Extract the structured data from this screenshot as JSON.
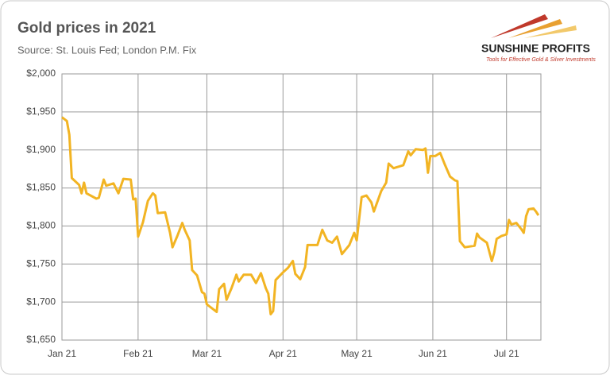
{
  "chart_data": {
    "type": "line",
    "title": "Gold prices in 2021",
    "subtitle": "Source: St. Louis Fed; London P.M. Fix",
    "brand": "SUNSHINE PROFITS",
    "tagline": "Tools for Effective Gold & Silver Investments",
    "color": "#f2b423",
    "grid": true,
    "x": [
      0,
      2,
      3,
      4,
      7,
      8,
      9,
      10,
      14,
      15,
      17,
      18,
      21,
      23,
      25,
      28,
      29,
      30,
      31,
      33,
      35,
      37,
      38,
      39,
      42,
      44,
      45,
      47,
      49,
      50,
      52,
      53,
      55,
      57,
      58,
      59,
      63,
      64,
      66,
      67,
      69,
      71,
      72,
      74,
      77,
      79,
      81,
      83,
      84,
      85,
      86,
      87,
      90,
      92,
      94,
      95,
      97,
      99,
      100,
      104,
      106,
      108,
      110,
      112,
      114,
      117,
      119,
      120,
      122,
      124,
      126,
      127,
      130,
      132,
      133,
      135,
      139,
      141,
      142,
      144,
      147,
      148,
      149,
      150,
      152,
      154,
      156,
      158,
      160,
      161,
      162,
      164,
      168,
      169,
      170,
      173,
      175,
      176,
      177,
      179,
      181,
      182,
      183,
      185,
      187,
      188,
      189,
      190,
      192,
      193,
      194
    ],
    "values": [
      1943,
      1938,
      1920,
      1863,
      1854,
      1843,
      1857,
      1843,
      1836,
      1837,
      1861,
      1853,
      1856,
      1843,
      1862,
      1861,
      1835,
      1836,
      1786,
      1805,
      1833,
      1843,
      1840,
      1817,
      1818,
      1791,
      1772,
      1787,
      1804,
      1795,
      1781,
      1742,
      1735,
      1713,
      1711,
      1697,
      1687,
      1717,
      1724,
      1703,
      1718,
      1736,
      1727,
      1736,
      1736,
      1725,
      1738,
      1718,
      1711,
      1684,
      1688,
      1729,
      1739,
      1745,
      1754,
      1737,
      1730,
      1746,
      1775,
      1775,
      1795,
      1781,
      1778,
      1786,
      1763,
      1775,
      1791,
      1781,
      1838,
      1840,
      1831,
      1819,
      1846,
      1857,
      1882,
      1876,
      1880,
      1898,
      1893,
      1901,
      1900,
      1902,
      1870,
      1892,
      1892,
      1896,
      1880,
      1865,
      1860,
      1859,
      1780,
      1772,
      1774,
      1790,
      1785,
      1778,
      1754,
      1765,
      1783,
      1787,
      1789,
      1808,
      1802,
      1804,
      1796,
      1791,
      1813,
      1822,
      1823,
      1819,
      1814
    ],
    "xlim": [
      0,
      195
    ],
    "xticks": [
      {
        "value": 0,
        "label": "Jan 21"
      },
      {
        "value": 31,
        "label": "Feb 21"
      },
      {
        "value": 59,
        "label": "Mar 21"
      },
      {
        "value": 90,
        "label": "Apr 21"
      },
      {
        "value": 120,
        "label": "May 21"
      },
      {
        "value": 151,
        "label": "Jun 21"
      },
      {
        "value": 181,
        "label": "Jul 21"
      }
    ],
    "ylim": [
      1650,
      2000
    ],
    "yticks": [
      {
        "value": 1650,
        "label": "$1,650"
      },
      {
        "value": 1700,
        "label": "$1,700"
      },
      {
        "value": 1750,
        "label": "$1,750"
      },
      {
        "value": 1800,
        "label": "$1,800"
      },
      {
        "value": 1850,
        "label": "$1,850"
      },
      {
        "value": 1900,
        "label": "$1,900"
      },
      {
        "value": 1950,
        "label": "$1,950"
      },
      {
        "value": 2000,
        "label": "$2,000"
      }
    ]
  }
}
